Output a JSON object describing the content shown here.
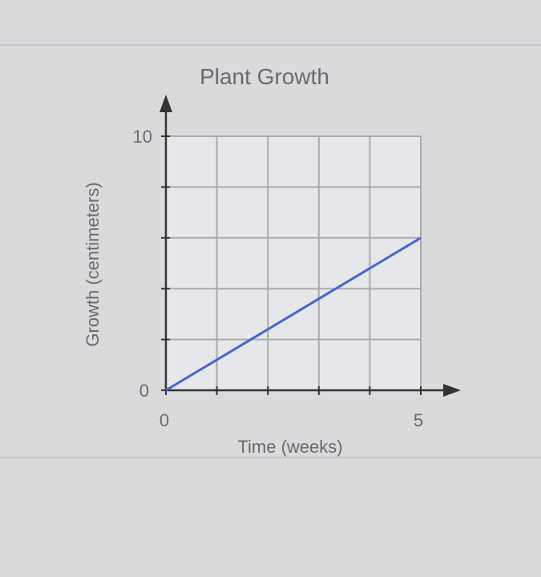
{
  "chart_data": {
    "type": "line",
    "title": "Plant Growth",
    "xlabel": "Time (weeks)",
    "ylabel": "Growth (centimeters)",
    "xlim": [
      0,
      5
    ],
    "ylim": [
      0,
      10
    ],
    "x_tick_labels": [
      "0",
      "5"
    ],
    "y_tick_labels": [
      "0",
      "10"
    ],
    "x_gridlines": [
      0,
      1,
      2,
      3,
      4,
      5
    ],
    "y_gridlines": [
      0,
      2,
      4,
      6,
      8,
      10
    ],
    "grid": true,
    "series": [
      {
        "x": [
          0,
          5
        ],
        "y": [
          0,
          6
        ],
        "color": "#4a64c8"
      }
    ]
  }
}
